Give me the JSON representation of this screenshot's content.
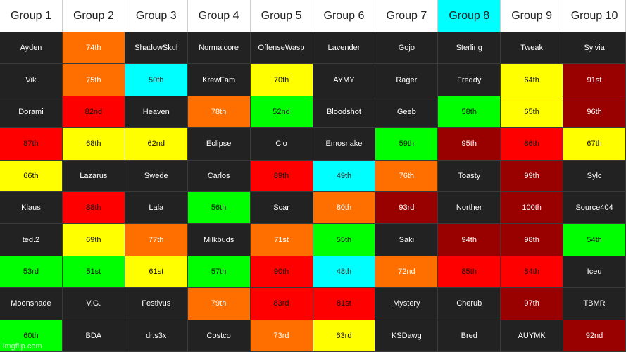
{
  "colors": {
    "dark": "#222222",
    "orange": "#ff6f00",
    "cyan": "#00ffff",
    "yellow": "#ffff00",
    "red": "#ff0000",
    "green": "#00ff00",
    "maroon": "#990000",
    "white": "#ffffff"
  },
  "headers": [
    {
      "label": "Group 1",
      "color": "white"
    },
    {
      "label": "Group 2",
      "color": "white"
    },
    {
      "label": "Group 3",
      "color": "white"
    },
    {
      "label": "Group 4",
      "color": "white"
    },
    {
      "label": "Group 5",
      "color": "white"
    },
    {
      "label": "Group 6",
      "color": "white"
    },
    {
      "label": "Group 7",
      "color": "white"
    },
    {
      "label": "Group 8",
      "color": "cyan"
    },
    {
      "label": "Group 9",
      "color": "white"
    },
    {
      "label": "Group 10",
      "color": "white"
    }
  ],
  "rows": [
    [
      {
        "text": "Ayden",
        "color": "dark"
      },
      {
        "text": "74th",
        "color": "orange"
      },
      {
        "text": "ShadowSkul",
        "color": "dark"
      },
      {
        "text": "Normalcore",
        "color": "dark"
      },
      {
        "text": "OffenseWasp",
        "color": "dark"
      },
      {
        "text": "Lavender",
        "color": "dark"
      },
      {
        "text": "Gojo",
        "color": "dark"
      },
      {
        "text": "Sterling",
        "color": "dark"
      },
      {
        "text": "Tweak",
        "color": "dark"
      },
      {
        "text": "Sylvia",
        "color": "dark"
      }
    ],
    [
      {
        "text": "Vik",
        "color": "dark"
      },
      {
        "text": "75th",
        "color": "orange"
      },
      {
        "text": "50th",
        "color": "cyan"
      },
      {
        "text": "KrewFam",
        "color": "dark"
      },
      {
        "text": "70th",
        "color": "yellow"
      },
      {
        "text": "AYMY",
        "color": "dark"
      },
      {
        "text": "Rager",
        "color": "dark"
      },
      {
        "text": "Freddy",
        "color": "dark"
      },
      {
        "text": "64th",
        "color": "yellow"
      },
      {
        "text": "91st",
        "color": "maroon"
      }
    ],
    [
      {
        "text": "Dorami",
        "color": "dark"
      },
      {
        "text": "82nd",
        "color": "red"
      },
      {
        "text": "Heaven",
        "color": "dark"
      },
      {
        "text": "78th",
        "color": "orange"
      },
      {
        "text": "52nd",
        "color": "green"
      },
      {
        "text": "Bloodshot",
        "color": "dark"
      },
      {
        "text": "Geeb",
        "color": "dark"
      },
      {
        "text": "58th",
        "color": "green"
      },
      {
        "text": "65th",
        "color": "yellow"
      },
      {
        "text": "96th",
        "color": "maroon"
      }
    ],
    [
      {
        "text": "87th",
        "color": "red"
      },
      {
        "text": "68th",
        "color": "yellow"
      },
      {
        "text": "62nd",
        "color": "yellow"
      },
      {
        "text": "Eclipse",
        "color": "dark"
      },
      {
        "text": "Clo",
        "color": "dark"
      },
      {
        "text": "Emosnake",
        "color": "dark"
      },
      {
        "text": "59th",
        "color": "green"
      },
      {
        "text": "95th",
        "color": "maroon"
      },
      {
        "text": "86th",
        "color": "red"
      },
      {
        "text": "67th",
        "color": "yellow"
      }
    ],
    [
      {
        "text": "66th",
        "color": "yellow"
      },
      {
        "text": "Lazarus",
        "color": "dark"
      },
      {
        "text": "Swede",
        "color": "dark"
      },
      {
        "text": "Carlos",
        "color": "dark"
      },
      {
        "text": "89th",
        "color": "red"
      },
      {
        "text": "49th",
        "color": "cyan"
      },
      {
        "text": "76th",
        "color": "orange"
      },
      {
        "text": "Toasty",
        "color": "dark"
      },
      {
        "text": "99th",
        "color": "maroon"
      },
      {
        "text": "Sylc",
        "color": "dark"
      }
    ],
    [
      {
        "text": "Klaus",
        "color": "dark"
      },
      {
        "text": "88th",
        "color": "red"
      },
      {
        "text": "Lala",
        "color": "dark"
      },
      {
        "text": "56th",
        "color": "green"
      },
      {
        "text": "Scar",
        "color": "dark"
      },
      {
        "text": "80th",
        "color": "orange"
      },
      {
        "text": "93rd",
        "color": "maroon"
      },
      {
        "text": "Norther",
        "color": "dark"
      },
      {
        "text": "100th",
        "color": "maroon"
      },
      {
        "text": "Source404",
        "color": "dark"
      }
    ],
    [
      {
        "text": "ted.2",
        "color": "dark"
      },
      {
        "text": "69th",
        "color": "yellow"
      },
      {
        "text": "77th",
        "color": "orange"
      },
      {
        "text": "Milkbuds",
        "color": "dark"
      },
      {
        "text": "71st",
        "color": "orange"
      },
      {
        "text": "55th",
        "color": "green"
      },
      {
        "text": "Saki",
        "color": "dark"
      },
      {
        "text": "94th",
        "color": "maroon"
      },
      {
        "text": "98th",
        "color": "maroon"
      },
      {
        "text": "54th",
        "color": "green"
      }
    ],
    [
      {
        "text": "53rd",
        "color": "green"
      },
      {
        "text": "51st",
        "color": "green"
      },
      {
        "text": "61st",
        "color": "yellow"
      },
      {
        "text": "57th",
        "color": "green"
      },
      {
        "text": "90th",
        "color": "red"
      },
      {
        "text": "48th",
        "color": "cyan"
      },
      {
        "text": "72nd",
        "color": "orange"
      },
      {
        "text": "85th",
        "color": "red"
      },
      {
        "text": "84th",
        "color": "red"
      },
      {
        "text": "Iceu",
        "color": "dark"
      }
    ],
    [
      {
        "text": "Moonshade",
        "color": "dark"
      },
      {
        "text": "V.G.",
        "color": "dark"
      },
      {
        "text": "Festivus",
        "color": "dark"
      },
      {
        "text": "79th",
        "color": "orange"
      },
      {
        "text": "83rd",
        "color": "red"
      },
      {
        "text": "81st",
        "color": "red"
      },
      {
        "text": "Mystery",
        "color": "dark"
      },
      {
        "text": "Cherub",
        "color": "dark"
      },
      {
        "text": "97th",
        "color": "maroon"
      },
      {
        "text": "TBMR",
        "color": "dark"
      }
    ],
    [
      {
        "text": "60th",
        "color": "green"
      },
      {
        "text": "BDA",
        "color": "dark"
      },
      {
        "text": "dr.s3x",
        "color": "dark"
      },
      {
        "text": "Costco",
        "color": "dark"
      },
      {
        "text": "73rd",
        "color": "orange"
      },
      {
        "text": "63rd",
        "color": "yellow"
      },
      {
        "text": "KSDawg",
        "color": "dark"
      },
      {
        "text": "Bred",
        "color": "dark"
      },
      {
        "text": "AUYMK",
        "color": "dark"
      },
      {
        "text": "92nd",
        "color": "maroon"
      }
    ]
  ],
  "watermark": "imgflip.com"
}
